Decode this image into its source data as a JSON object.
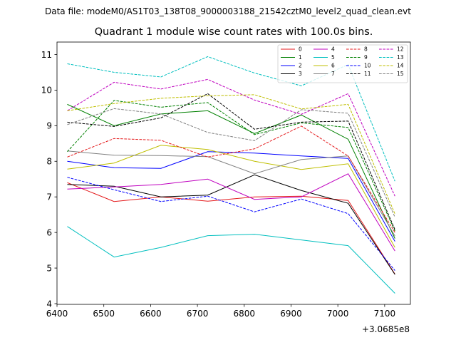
{
  "chart_data": {
    "type": "line",
    "suptitle": "Data file: modeM0/AS1T03_138T08_9000003188_21542cztM0_level2_quad_clean.evt",
    "title": "Quadrant 1 module wise count rates with 100.0s bins.",
    "xlabel": "",
    "ylabel": "",
    "x_offset_label": "+3.0685e8",
    "x": [
      6422,
      6522,
      6622,
      6722,
      6822,
      6922,
      7022,
      7122
    ],
    "xlim": [
      6400,
      7155
    ],
    "ylim": [
      3.98,
      11.35
    ],
    "xticks": [
      6400,
      6500,
      6600,
      6700,
      6800,
      6900,
      7000,
      7100
    ],
    "yticks": [
      4,
      5,
      6,
      7,
      8,
      9,
      10,
      11
    ],
    "legend_position": "top-right",
    "series": [
      {
        "name": "0",
        "color": "#e41a1c",
        "style": "solid",
        "values": [
          7.4,
          6.87,
          7.0,
          6.88,
          7.0,
          7.02,
          6.9,
          4.83
        ]
      },
      {
        "name": "1",
        "color": "#008000",
        "style": "solid",
        "values": [
          9.6,
          9.0,
          9.33,
          9.42,
          8.78,
          9.3,
          8.62,
          5.83
        ]
      },
      {
        "name": "2",
        "color": "#0000ff",
        "style": "solid",
        "values": [
          8.0,
          7.82,
          7.8,
          8.27,
          8.23,
          8.15,
          8.08,
          5.75
        ]
      },
      {
        "name": "3",
        "color": "#000000",
        "style": "solid",
        "values": [
          7.35,
          7.3,
          7.0,
          7.05,
          7.62,
          7.18,
          6.82,
          4.82
        ]
      },
      {
        "name": "4",
        "color": "#bf00bf",
        "style": "solid",
        "values": [
          7.22,
          7.28,
          7.35,
          7.5,
          6.93,
          7.0,
          7.65,
          5.48
        ]
      },
      {
        "name": "5",
        "color": "#00bfbf",
        "style": "solid",
        "values": [
          6.17,
          5.31,
          5.58,
          5.91,
          5.95,
          5.79,
          5.63,
          4.29
        ]
      },
      {
        "name": "6",
        "color": "#bfbf00",
        "style": "solid",
        "values": [
          7.78,
          7.95,
          8.45,
          8.33,
          8.0,
          7.77,
          7.93,
          5.58
        ]
      },
      {
        "name": "7",
        "color": "#808080",
        "style": "solid",
        "values": [
          8.29,
          8.17,
          8.16,
          8.13,
          7.65,
          8.05,
          8.15,
          5.9
        ]
      },
      {
        "name": "8",
        "color": "#e41a1c",
        "style": "dashed",
        "values": [
          8.12,
          8.64,
          8.59,
          8.12,
          8.35,
          8.99,
          8.15,
          6.0
        ]
      },
      {
        "name": "9",
        "color": "#008000",
        "style": "dashed",
        "values": [
          8.27,
          9.71,
          9.52,
          9.65,
          8.75,
          9.08,
          8.95,
          6.04
        ]
      },
      {
        "name": "10",
        "color": "#0000ff",
        "style": "dashed",
        "values": [
          7.55,
          7.2,
          6.87,
          7.02,
          6.58,
          6.94,
          6.53,
          4.93
        ]
      },
      {
        "name": "11",
        "color": "#000000",
        "style": "dashed",
        "values": [
          9.1,
          8.98,
          9.22,
          9.9,
          8.9,
          9.1,
          9.13,
          6.08
        ]
      },
      {
        "name": "12",
        "color": "#bf00bf",
        "style": "dashed",
        "values": [
          9.42,
          10.22,
          10.03,
          10.3,
          9.72,
          9.32,
          9.9,
          7.02
        ]
      },
      {
        "name": "13",
        "color": "#00bfbf",
        "style": "dashed",
        "values": [
          10.74,
          10.5,
          10.37,
          10.94,
          10.48,
          10.12,
          10.72,
          7.44
        ]
      },
      {
        "name": "14",
        "color": "#bfbf00",
        "style": "dashed",
        "values": [
          9.42,
          9.62,
          9.77,
          9.84,
          9.87,
          9.47,
          9.6,
          6.52
        ]
      },
      {
        "name": "15",
        "color": "#808080",
        "style": "dashed",
        "values": [
          9.03,
          9.48,
          9.33,
          8.81,
          8.58,
          9.45,
          9.35,
          6.43
        ]
      }
    ]
  }
}
